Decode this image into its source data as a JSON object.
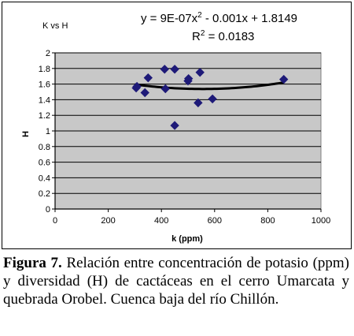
{
  "chart_data": {
    "type": "scatter",
    "title": "K vs H",
    "xlabel": "k (ppm)",
    "ylabel": "H",
    "xlim": [
      0,
      1000
    ],
    "ylim": [
      0,
      2
    ],
    "xticks": [
      "0",
      "200",
      "400",
      "600",
      "800",
      "1000"
    ],
    "yticks": [
      "0",
      "0.2",
      "0.4",
      "0.6",
      "0.8",
      "1",
      "1.2",
      "1.4",
      "1.6",
      "1.8",
      "2"
    ],
    "grid": "horizontal",
    "legend": "none",
    "marker_color": "#1e1a78",
    "trendline_color": "#000000",
    "plot_background": "#c8c8c8",
    "equation": {
      "prefix": "y = 9E-07x",
      "sup": "2",
      "suffix": " - 0.001x + 1.8149"
    },
    "r_squared": {
      "prefix": "R",
      "sup": "2",
      "suffix": " = 0.0183"
    },
    "trendline": {
      "a": 9e-07,
      "b": -0.001,
      "c": 1.8149,
      "x_range": [
        300,
        860
      ]
    },
    "points": [
      {
        "x": 305,
        "y": 1.55
      },
      {
        "x": 308,
        "y": 1.57
      },
      {
        "x": 338,
        "y": 1.49
      },
      {
        "x": 350,
        "y": 1.68
      },
      {
        "x": 412,
        "y": 1.79
      },
      {
        "x": 415,
        "y": 1.54
      },
      {
        "x": 450,
        "y": 1.79
      },
      {
        "x": 450,
        "y": 1.07
      },
      {
        "x": 500,
        "y": 1.64
      },
      {
        "x": 502,
        "y": 1.67
      },
      {
        "x": 538,
        "y": 1.36
      },
      {
        "x": 545,
        "y": 1.75
      },
      {
        "x": 592,
        "y": 1.41
      },
      {
        "x": 860,
        "y": 1.66
      }
    ]
  },
  "caption": {
    "label": "Figura 7.",
    "text": " Relación entre concentración de potasio (ppm) y diversidad (H) de cactáceas en el cerro Umarcata y quebrada Orobel. Cuenca baja del río Chillón."
  }
}
